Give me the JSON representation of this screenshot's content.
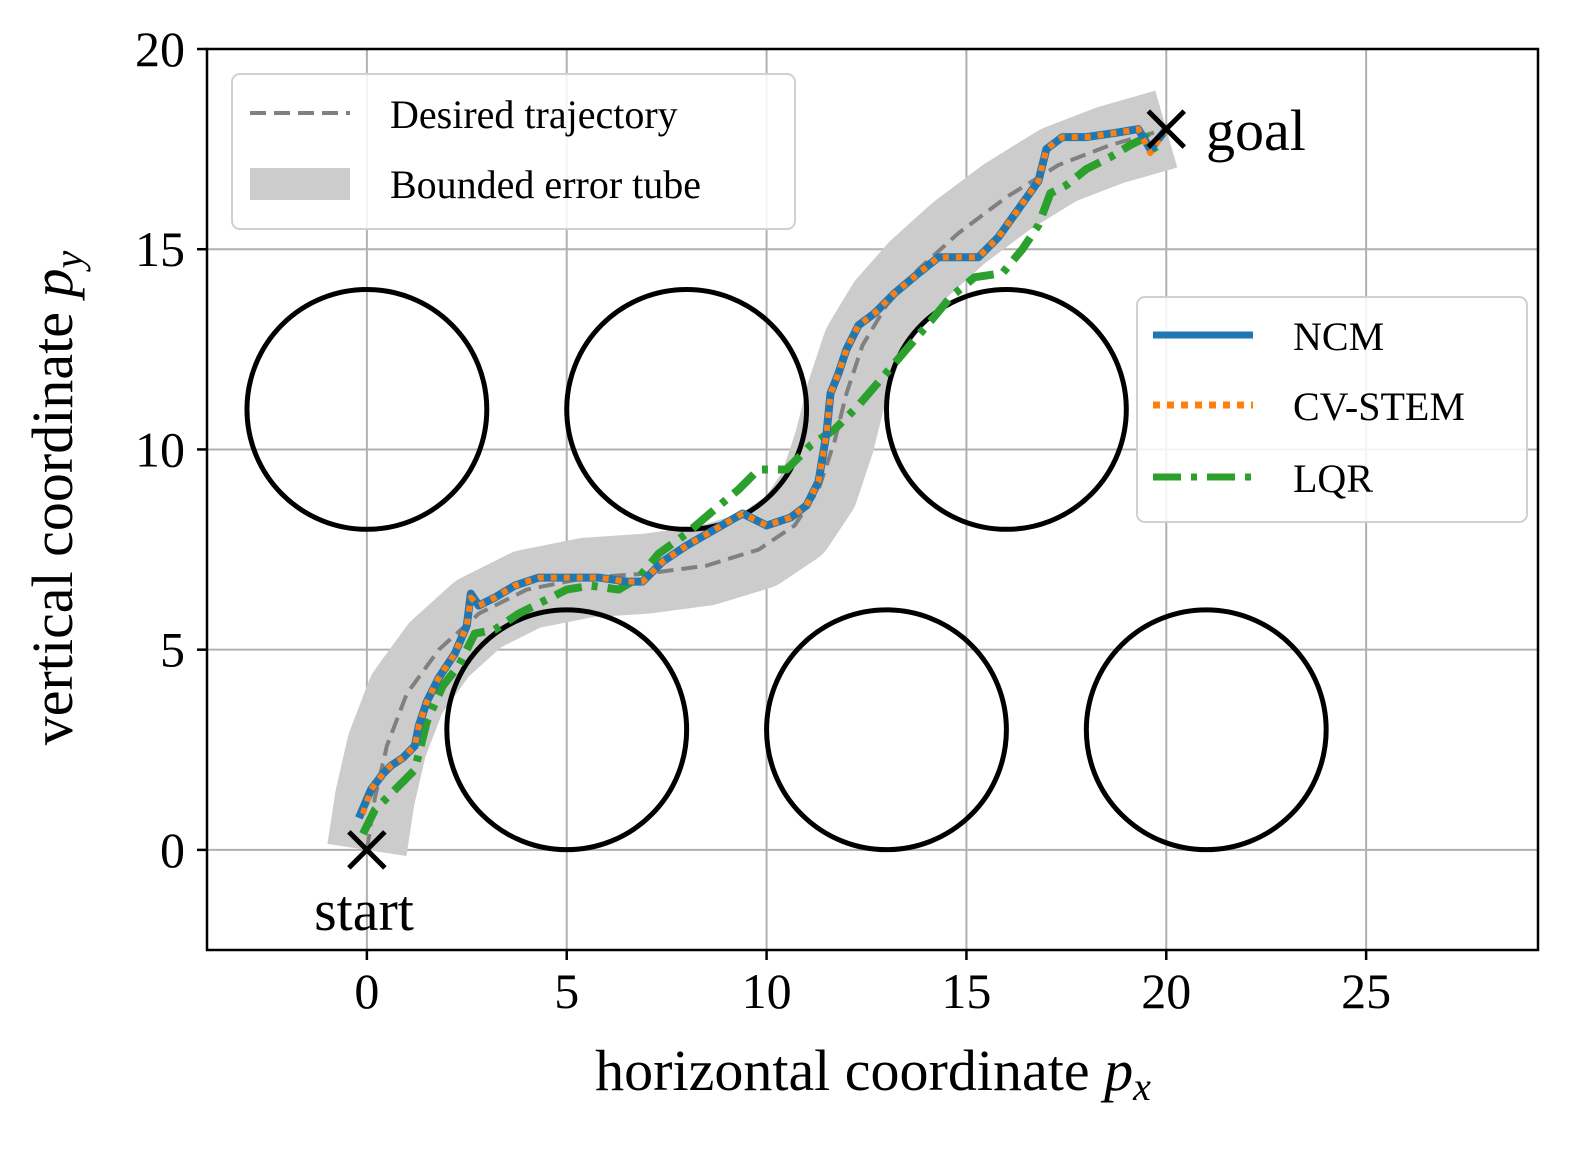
{
  "chart_data": {
    "type": "line",
    "title": "",
    "xlabel": "horizontal coordinate",
    "xlabel_symbol": "p",
    "xlabel_sub": "x",
    "ylabel": "vertical coordinate",
    "ylabel_symbol": "p",
    "ylabel_sub": "y",
    "xlim": [
      -4,
      29.3
    ],
    "ylim": [
      -2.5,
      20
    ],
    "xticks": [
      0,
      5,
      10,
      15,
      20,
      25
    ],
    "yticks": [
      0,
      5,
      10,
      15,
      20
    ],
    "grid": true,
    "legend_top": {
      "placement": "top-left",
      "entries": [
        {
          "label": "Desired trajectory",
          "color": "#808080",
          "style": "dashed"
        },
        {
          "label": "Bounded error tube",
          "color": "#cccccc",
          "style": "band"
        }
      ]
    },
    "legend_right": {
      "placement": "center-right",
      "entries": [
        {
          "label": "NCM",
          "color": "#1f77b4",
          "style": "solid"
        },
        {
          "label": "CV-STEM",
          "color": "#ff7f0e",
          "style": "dotted"
        },
        {
          "label": "LQR",
          "color": "#2ca02c",
          "style": "dashdot"
        }
      ]
    },
    "obstacles": [
      {
        "cx": 0,
        "cy": 11,
        "r": 3
      },
      {
        "cx": 8,
        "cy": 11,
        "r": 3
      },
      {
        "cx": 16,
        "cy": 11,
        "r": 3
      },
      {
        "cx": 5,
        "cy": 3,
        "r": 3
      },
      {
        "cx": 13,
        "cy": 3,
        "r": 3
      },
      {
        "cx": 21,
        "cy": 3,
        "r": 3
      }
    ],
    "start": {
      "x": 0,
      "y": 0,
      "label": "start"
    },
    "goal": {
      "x": 20,
      "y": 18,
      "label": "goal"
    },
    "tube_halfwidth": 1.0,
    "series": [
      {
        "name": "Desired trajectory",
        "x": [
          0,
          0.2,
          0.5,
          1.0,
          1.8,
          2.8,
          4.0,
          5.5,
          7.0,
          8.5,
          9.8,
          10.7,
          11.3,
          11.7,
          12.0,
          12.4,
          13.0,
          13.8,
          14.8,
          16.0,
          17.3,
          18.6,
          20.0
        ],
        "y": [
          0,
          1.3,
          2.6,
          3.9,
          5.0,
          5.9,
          6.5,
          6.8,
          6.9,
          7.1,
          7.5,
          8.1,
          9.0,
          10.2,
          11.4,
          12.6,
          13.6,
          14.5,
          15.4,
          16.3,
          17.1,
          17.6,
          18.0
        ]
      },
      {
        "name": "NCM",
        "x": [
          -0.2,
          0.1,
          0.4,
          0.6,
          0.9,
          1.2,
          1.3,
          1.5,
          1.8,
          2.2,
          2.5,
          2.6,
          2.8,
          3.2,
          3.7,
          4.3,
          5.0,
          5.8,
          6.5,
          6.9,
          7.4,
          8.0,
          8.7,
          9.4,
          10.0,
          10.6,
          11.0,
          11.3,
          11.5,
          11.6,
          11.8,
          12.0,
          12.3,
          12.7,
          13.2,
          13.8,
          14.3,
          14.8,
          15.3,
          15.8,
          16.3,
          16.8,
          17.0,
          17.4,
          18.0,
          18.7,
          19.3,
          19.6,
          20.0
        ],
        "y": [
          0.8,
          1.5,
          1.9,
          2.1,
          2.3,
          2.6,
          3.1,
          3.7,
          4.3,
          4.9,
          5.6,
          6.4,
          6.1,
          6.3,
          6.6,
          6.8,
          6.8,
          6.8,
          6.7,
          6.7,
          7.2,
          7.6,
          8.0,
          8.4,
          8.1,
          8.3,
          8.6,
          9.2,
          10.4,
          11.4,
          11.9,
          12.5,
          13.1,
          13.4,
          13.9,
          14.4,
          14.8,
          14.8,
          14.8,
          15.3,
          16.0,
          16.7,
          17.5,
          17.8,
          17.8,
          17.9,
          18.0,
          17.5,
          18.0
        ]
      },
      {
        "name": "CV-STEM",
        "x": [
          -0.1,
          0.1,
          0.4,
          0.6,
          0.9,
          1.2,
          1.3,
          1.5,
          1.8,
          2.2,
          2.5,
          2.6,
          2.8,
          3.2,
          3.7,
          4.3,
          5.0,
          5.8,
          6.5,
          6.9,
          7.4,
          8.0,
          8.7,
          9.4,
          10.0,
          10.6,
          11.0,
          11.3,
          11.5,
          11.6,
          11.8,
          12.0,
          12.3,
          12.7,
          13.2,
          13.8,
          14.3,
          14.8,
          15.3,
          15.8,
          16.3,
          16.8,
          17.0,
          17.4,
          18.0,
          18.7,
          19.3,
          19.6,
          20.0
        ],
        "y": [
          0.9,
          1.5,
          1.9,
          2.1,
          2.3,
          2.6,
          3.1,
          3.7,
          4.3,
          4.9,
          5.6,
          6.3,
          6.1,
          6.3,
          6.6,
          6.8,
          6.8,
          6.8,
          6.7,
          6.7,
          7.2,
          7.6,
          8.0,
          8.4,
          8.1,
          8.3,
          8.6,
          9.2,
          10.4,
          11.4,
          11.9,
          12.5,
          13.1,
          13.4,
          13.9,
          14.4,
          14.8,
          14.8,
          14.8,
          15.3,
          16.0,
          16.7,
          17.5,
          17.8,
          17.8,
          17.9,
          18.0,
          17.4,
          18.0
        ]
      },
      {
        "name": "LQR",
        "x": [
          -0.1,
          0.2,
          0.5,
          0.8,
          1.2,
          1.5,
          1.9,
          2.3,
          2.7,
          3.2,
          3.8,
          4.4,
          5.0,
          5.6,
          6.3,
          6.8,
          7.3,
          8.0,
          8.7,
          9.3,
          9.8,
          10.5,
          11.1,
          11.7,
          12.3,
          12.9,
          13.5,
          14.1,
          14.6,
          15.2,
          15.9,
          16.4,
          16.8,
          17.1,
          17.5,
          18.0,
          18.6,
          19.1,
          19.5,
          19.8
        ],
        "y": [
          0.4,
          1.0,
          1.3,
          1.6,
          2.0,
          3.2,
          4.1,
          4.6,
          5.4,
          5.5,
          5.9,
          6.2,
          6.5,
          6.6,
          6.5,
          6.8,
          7.4,
          7.9,
          8.5,
          9.0,
          9.5,
          9.5,
          10.1,
          10.5,
          11.1,
          11.8,
          12.5,
          13.2,
          13.8,
          14.3,
          14.4,
          15.0,
          15.6,
          16.4,
          16.6,
          17.0,
          17.3,
          17.6,
          17.8,
          17.3
        ]
      }
    ]
  }
}
